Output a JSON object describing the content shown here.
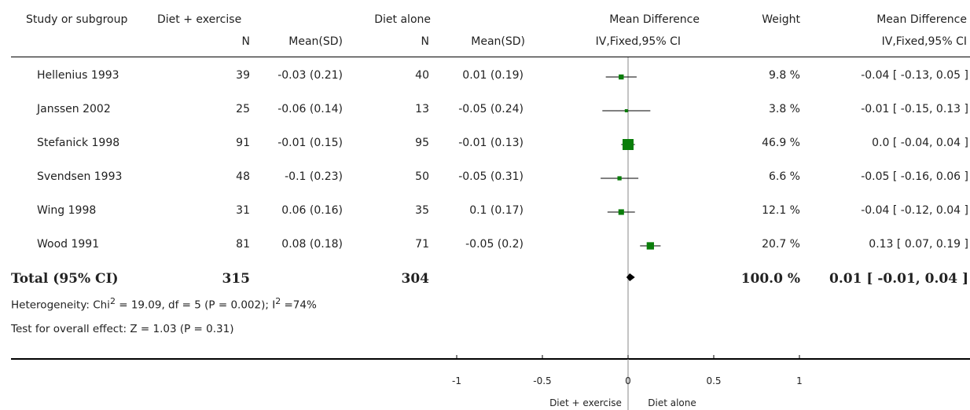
{
  "header": {
    "study_col": "Study or subgroup",
    "group1": "Diet + exercise",
    "group2": "Diet alone",
    "n_label": "N",
    "mean_sd_label": "Mean(SD)",
    "md_col": "Mean Difference",
    "md_method": "IV,Fixed,95% CI",
    "weight_col": "Weight",
    "md_col_right": "Mean Difference",
    "md_method_right": "IV,Fixed,95% CI"
  },
  "studies": [
    {
      "name": "Hellenius 1993",
      "n1": "39",
      "ms1": "-0.03 (0.21)",
      "n2": "40",
      "ms2": "0.01 (0.19)",
      "weight": "9.8 %",
      "ci": "-0.04 [ -0.13, 0.05 ]"
    },
    {
      "name": "Janssen 2002",
      "n1": "25",
      "ms1": "-0.06 (0.14)",
      "n2": "13",
      "ms2": "-0.05 (0.24)",
      "weight": "3.8 %",
      "ci": "-0.01 [ -0.15, 0.13 ]"
    },
    {
      "name": "Stefanick 1998",
      "n1": "91",
      "ms1": "-0.01 (0.15)",
      "n2": "95",
      "ms2": "-0.01 (0.13)",
      "weight": "46.9 %",
      "ci": "0.0 [ -0.04, 0.04 ]"
    },
    {
      "name": "Svendsen 1993",
      "n1": "48",
      "ms1": "-0.1 (0.23)",
      "n2": "50",
      "ms2": "-0.05 (0.31)",
      "weight": "6.6 %",
      "ci": "-0.05 [ -0.16, 0.06 ]"
    },
    {
      "name": "Wing 1998",
      "n1": "31",
      "ms1": "0.06 (0.16)",
      "n2": "35",
      "ms2": "0.1 (0.17)",
      "weight": "12.1 %",
      "ci": "-0.04 [ -0.12, 0.04 ]"
    },
    {
      "name": "Wood 1991",
      "n1": "81",
      "ms1": "0.08 (0.18)",
      "n2": "71",
      "ms2": "-0.05 (0.2)",
      "weight": "20.7 %",
      "ci": "0.13 [ 0.07, 0.19 ]"
    }
  ],
  "total": {
    "label": "Total (95% CI)",
    "n1": "315",
    "n2": "304",
    "weight": "100.0 %",
    "ci": "0.01 [ -0.01, 0.04 ]"
  },
  "heterogeneity": {
    "prefix": "Heterogeneity: Chi",
    "chi_sup": "2",
    "middle": " = 19.09, df = 5 (P = 0.002); I",
    "i_sup": "2",
    "suffix": " =74%"
  },
  "overall_effect": "Test for overall effect: Z = 1.03 (P = 0.31)",
  "axis": {
    "favours_left": "Diet + exercise",
    "favours_right": "Diet alone"
  },
  "colors": {
    "marker": "#0a7d0a",
    "line": "#000000",
    "zero_line": "#888888"
  },
  "chart_data": {
    "type": "forest",
    "xlim": [
      -1,
      1
    ],
    "ticks": [
      -1,
      -0.5,
      0,
      0.5,
      1
    ],
    "tick_labels": [
      "-1",
      "-0.5",
      "0",
      "0.5",
      "1"
    ],
    "studies": [
      {
        "name": "Hellenius 1993",
        "md": -0.04,
        "lo": -0.13,
        "hi": 0.05,
        "weight": 9.8
      },
      {
        "name": "Janssen 2002",
        "md": -0.01,
        "lo": -0.15,
        "hi": 0.13,
        "weight": 3.8
      },
      {
        "name": "Stefanick 1998",
        "md": 0.0,
        "lo": -0.04,
        "hi": 0.04,
        "weight": 46.9
      },
      {
        "name": "Svendsen 1993",
        "md": -0.05,
        "lo": -0.16,
        "hi": 0.06,
        "weight": 6.6
      },
      {
        "name": "Wing 1998",
        "md": -0.04,
        "lo": -0.12,
        "hi": 0.04,
        "weight": 12.1
      },
      {
        "name": "Wood 1991",
        "md": 0.13,
        "lo": 0.07,
        "hi": 0.19,
        "weight": 20.7
      }
    ],
    "pooled": {
      "md": 0.01,
      "lo": -0.01,
      "hi": 0.04
    }
  }
}
